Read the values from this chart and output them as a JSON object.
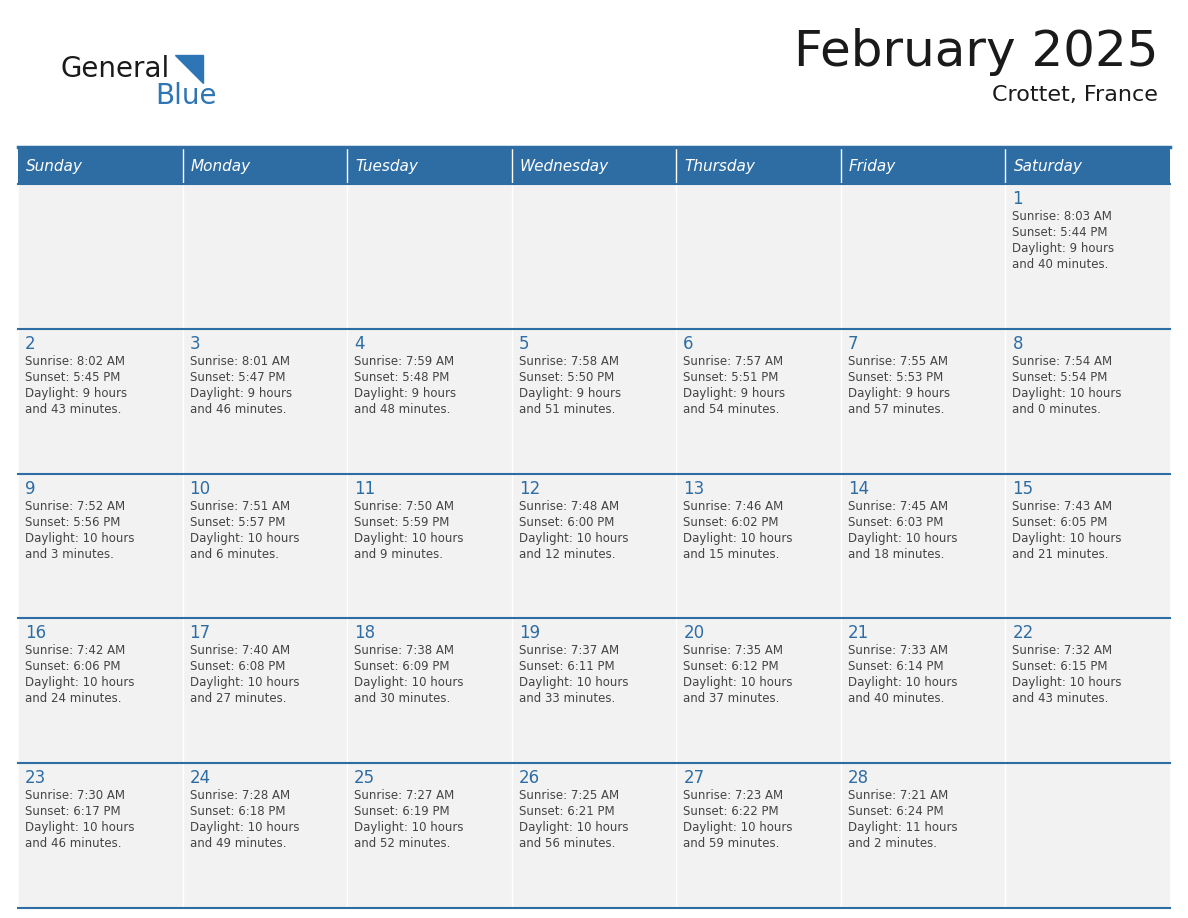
{
  "title": "February 2025",
  "subtitle": "Crottet, France",
  "header_bg_color": "#2E6DA4",
  "header_text_color": "#FFFFFF",
  "cell_bg_color": "#F2F2F2",
  "day_number_color": "#2E6DA4",
  "cell_text_color": "#444444",
  "border_color": "#2E6DA4",
  "days_of_week": [
    "Sunday",
    "Monday",
    "Tuesday",
    "Wednesday",
    "Thursday",
    "Friday",
    "Saturday"
  ],
  "calendar_data": [
    [
      null,
      null,
      null,
      null,
      null,
      null,
      {
        "day": "1",
        "sunrise": "Sunrise: 8:03 AM",
        "sunset": "Sunset: 5:44 PM",
        "daylight": "Daylight: 9 hours",
        "daylight2": "and 40 minutes."
      }
    ],
    [
      {
        "day": "2",
        "sunrise": "Sunrise: 8:02 AM",
        "sunset": "Sunset: 5:45 PM",
        "daylight": "Daylight: 9 hours",
        "daylight2": "and 43 minutes."
      },
      {
        "day": "3",
        "sunrise": "Sunrise: 8:01 AM",
        "sunset": "Sunset: 5:47 PM",
        "daylight": "Daylight: 9 hours",
        "daylight2": "and 46 minutes."
      },
      {
        "day": "4",
        "sunrise": "Sunrise: 7:59 AM",
        "sunset": "Sunset: 5:48 PM",
        "daylight": "Daylight: 9 hours",
        "daylight2": "and 48 minutes."
      },
      {
        "day": "5",
        "sunrise": "Sunrise: 7:58 AM",
        "sunset": "Sunset: 5:50 PM",
        "daylight": "Daylight: 9 hours",
        "daylight2": "and 51 minutes."
      },
      {
        "day": "6",
        "sunrise": "Sunrise: 7:57 AM",
        "sunset": "Sunset: 5:51 PM",
        "daylight": "Daylight: 9 hours",
        "daylight2": "and 54 minutes."
      },
      {
        "day": "7",
        "sunrise": "Sunrise: 7:55 AM",
        "sunset": "Sunset: 5:53 PM",
        "daylight": "Daylight: 9 hours",
        "daylight2": "and 57 minutes."
      },
      {
        "day": "8",
        "sunrise": "Sunrise: 7:54 AM",
        "sunset": "Sunset: 5:54 PM",
        "daylight": "Daylight: 10 hours",
        "daylight2": "and 0 minutes."
      }
    ],
    [
      {
        "day": "9",
        "sunrise": "Sunrise: 7:52 AM",
        "sunset": "Sunset: 5:56 PM",
        "daylight": "Daylight: 10 hours",
        "daylight2": "and 3 minutes."
      },
      {
        "day": "10",
        "sunrise": "Sunrise: 7:51 AM",
        "sunset": "Sunset: 5:57 PM",
        "daylight": "Daylight: 10 hours",
        "daylight2": "and 6 minutes."
      },
      {
        "day": "11",
        "sunrise": "Sunrise: 7:50 AM",
        "sunset": "Sunset: 5:59 PM",
        "daylight": "Daylight: 10 hours",
        "daylight2": "and 9 minutes."
      },
      {
        "day": "12",
        "sunrise": "Sunrise: 7:48 AM",
        "sunset": "Sunset: 6:00 PM",
        "daylight": "Daylight: 10 hours",
        "daylight2": "and 12 minutes."
      },
      {
        "day": "13",
        "sunrise": "Sunrise: 7:46 AM",
        "sunset": "Sunset: 6:02 PM",
        "daylight": "Daylight: 10 hours",
        "daylight2": "and 15 minutes."
      },
      {
        "day": "14",
        "sunrise": "Sunrise: 7:45 AM",
        "sunset": "Sunset: 6:03 PM",
        "daylight": "Daylight: 10 hours",
        "daylight2": "and 18 minutes."
      },
      {
        "day": "15",
        "sunrise": "Sunrise: 7:43 AM",
        "sunset": "Sunset: 6:05 PM",
        "daylight": "Daylight: 10 hours",
        "daylight2": "and 21 minutes."
      }
    ],
    [
      {
        "day": "16",
        "sunrise": "Sunrise: 7:42 AM",
        "sunset": "Sunset: 6:06 PM",
        "daylight": "Daylight: 10 hours",
        "daylight2": "and 24 minutes."
      },
      {
        "day": "17",
        "sunrise": "Sunrise: 7:40 AM",
        "sunset": "Sunset: 6:08 PM",
        "daylight": "Daylight: 10 hours",
        "daylight2": "and 27 minutes."
      },
      {
        "day": "18",
        "sunrise": "Sunrise: 7:38 AM",
        "sunset": "Sunset: 6:09 PM",
        "daylight": "Daylight: 10 hours",
        "daylight2": "and 30 minutes."
      },
      {
        "day": "19",
        "sunrise": "Sunrise: 7:37 AM",
        "sunset": "Sunset: 6:11 PM",
        "daylight": "Daylight: 10 hours",
        "daylight2": "and 33 minutes."
      },
      {
        "day": "20",
        "sunrise": "Sunrise: 7:35 AM",
        "sunset": "Sunset: 6:12 PM",
        "daylight": "Daylight: 10 hours",
        "daylight2": "and 37 minutes."
      },
      {
        "day": "21",
        "sunrise": "Sunrise: 7:33 AM",
        "sunset": "Sunset: 6:14 PM",
        "daylight": "Daylight: 10 hours",
        "daylight2": "and 40 minutes."
      },
      {
        "day": "22",
        "sunrise": "Sunrise: 7:32 AM",
        "sunset": "Sunset: 6:15 PM",
        "daylight": "Daylight: 10 hours",
        "daylight2": "and 43 minutes."
      }
    ],
    [
      {
        "day": "23",
        "sunrise": "Sunrise: 7:30 AM",
        "sunset": "Sunset: 6:17 PM",
        "daylight": "Daylight: 10 hours",
        "daylight2": "and 46 minutes."
      },
      {
        "day": "24",
        "sunrise": "Sunrise: 7:28 AM",
        "sunset": "Sunset: 6:18 PM",
        "daylight": "Daylight: 10 hours",
        "daylight2": "and 49 minutes."
      },
      {
        "day": "25",
        "sunrise": "Sunrise: 7:27 AM",
        "sunset": "Sunset: 6:19 PM",
        "daylight": "Daylight: 10 hours",
        "daylight2": "and 52 minutes."
      },
      {
        "day": "26",
        "sunrise": "Sunrise: 7:25 AM",
        "sunset": "Sunset: 6:21 PM",
        "daylight": "Daylight: 10 hours",
        "daylight2": "and 56 minutes."
      },
      {
        "day": "27",
        "sunrise": "Sunrise: 7:23 AM",
        "sunset": "Sunset: 6:22 PM",
        "daylight": "Daylight: 10 hours",
        "daylight2": "and 59 minutes."
      },
      {
        "day": "28",
        "sunrise": "Sunrise: 7:21 AM",
        "sunset": "Sunset: 6:24 PM",
        "daylight": "Daylight: 11 hours",
        "daylight2": "and 2 minutes."
      },
      null
    ]
  ],
  "logo_text1": "General",
  "logo_text2": "Blue",
  "logo_color1": "#1a1a1a",
  "logo_color2": "#2E75B6",
  "fig_width": 11.88,
  "fig_height": 9.18,
  "dpi": 100
}
